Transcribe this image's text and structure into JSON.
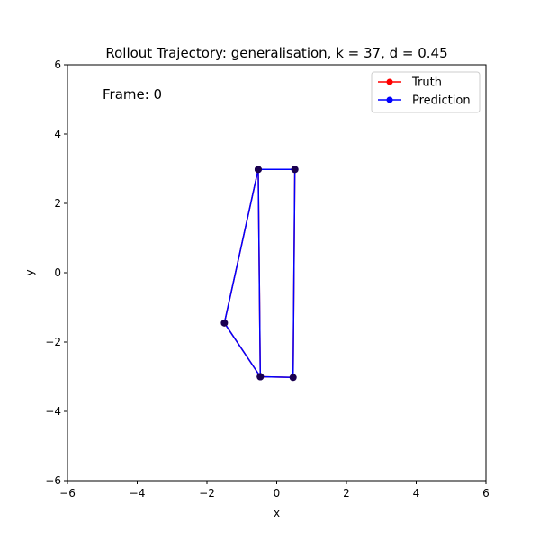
{
  "chart_data": {
    "type": "line",
    "title": "Rollout Trajectory: generalisation, k = 37, d = 0.45",
    "xlabel": "x",
    "ylabel": "y",
    "xlim": [
      -6,
      6
    ],
    "ylim": [
      -6,
      6
    ],
    "xticks": [
      -6,
      -4,
      -2,
      0,
      2,
      4,
      6
    ],
    "yticks": [
      -6,
      -4,
      -2,
      0,
      2,
      4,
      6
    ],
    "xtick_labels": [
      "−6",
      "−4",
      "−2",
      "0",
      "2",
      "4",
      "6"
    ],
    "ytick_labels": [
      "−6",
      "−4",
      "−2",
      "0",
      "2",
      "4",
      "6"
    ],
    "grid": false,
    "legend_position": "top-right",
    "annotation": "Frame: 0",
    "series": [
      {
        "name": "Truth",
        "color": "#ff0000",
        "x": [
          0.52,
          -0.53,
          -1.5,
          -0.47,
          0.47,
          0.52,
          -0.53,
          -0.47
        ],
        "y": [
          2.98,
          2.98,
          -1.45,
          -3.0,
          -3.02,
          2.98,
          2.98,
          -3.0
        ]
      },
      {
        "name": "Prediction",
        "color": "#0000ff",
        "x": [
          0.52,
          -0.53,
          -1.5,
          -0.47,
          0.47,
          0.52,
          -0.53,
          -0.47
        ],
        "y": [
          2.98,
          2.98,
          -1.45,
          -3.0,
          -3.02,
          2.98,
          2.98,
          -3.0
        ]
      }
    ],
    "overlay_vertex_color": "#1a0050"
  }
}
